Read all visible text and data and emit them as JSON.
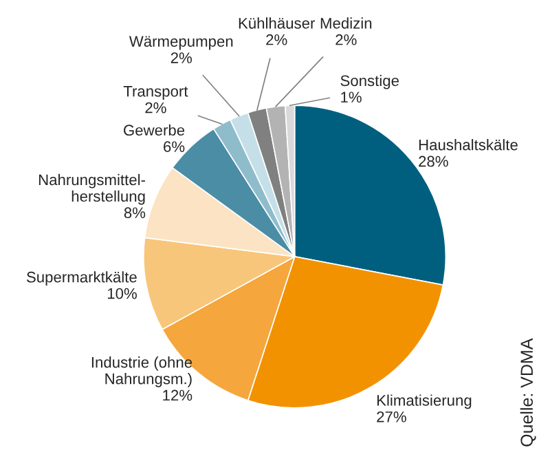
{
  "chart_data": {
    "type": "pie",
    "categories": [
      "Haushaltskälte",
      "Klimatisierung",
      "Industrie (ohne\nNahrungsm.)",
      "Supermarktkälte",
      "Nahrungsmittel-\nherstellung",
      "Gewerbe",
      "Transport",
      "Wärmepumpen",
      "Kühlhäuser",
      "Medizin",
      "Sonstige"
    ],
    "values": [
      28,
      27,
      12,
      10,
      8,
      6,
      2,
      2,
      2,
      2,
      1
    ],
    "value_labels": [
      "28%",
      "27%",
      "12%",
      "10%",
      "8%",
      "6%",
      "2%",
      "2%",
      "2%",
      "2%",
      "1%"
    ],
    "colors": [
      "#005f7f",
      "#f39200",
      "#f5a63c",
      "#f8c67a",
      "#fbe3c3",
      "#4a8da5",
      "#8fbccb",
      "#c5dfe8",
      "#808080",
      "#b3b3b3",
      "#d9d9d9"
    ],
    "annotations": [
      "Quelle: VDMA"
    ]
  }
}
